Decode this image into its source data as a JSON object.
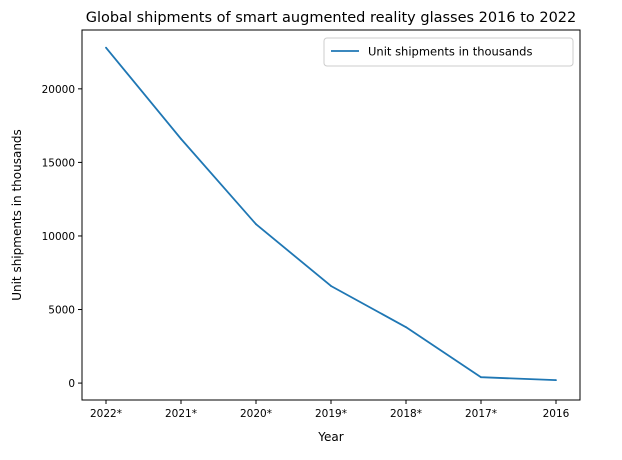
{
  "chart_data": {
    "type": "line",
    "title": "Global shipments of smart augmented reality glasses 2016 to 2022",
    "xlabel": "Year",
    "ylabel": "Unit shipments in thousands",
    "categories": [
      "2022*",
      "2021*",
      "2020*",
      "2019*",
      "2018*",
      "2017*",
      "2016"
    ],
    "series": [
      {
        "name": "Unit shipments in thousands",
        "values": [
          22800,
          16600,
          10800,
          6600,
          3800,
          400,
          200
        ],
        "color": "#1f77b4"
      }
    ],
    "yticks": [
      0,
      5000,
      10000,
      15000,
      20000
    ],
    "ylim": [
      -1150,
      24000
    ],
    "grid": false,
    "legend_position": "top-right"
  }
}
